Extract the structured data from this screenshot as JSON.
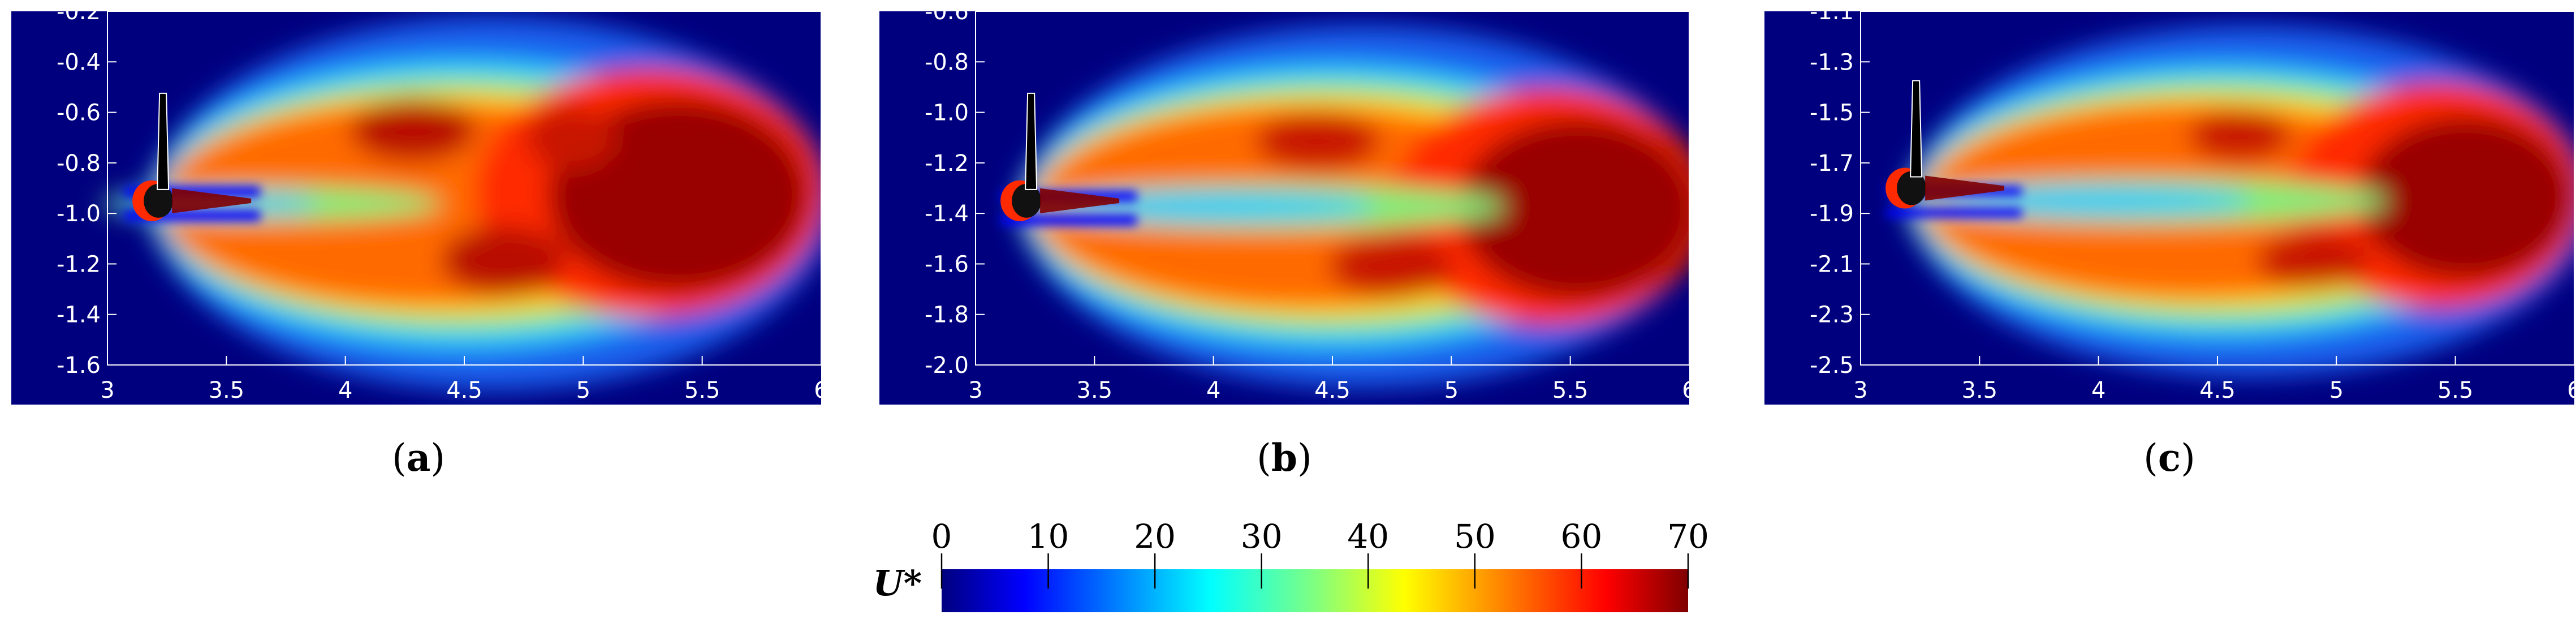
{
  "chart_data": [
    {
      "type": "heatmap",
      "panel_label": "a",
      "x_ticks": [
        "3",
        "3.5",
        "4",
        "4.5",
        "5",
        "5.5",
        "6"
      ],
      "y_ticks": [
        "-0.2",
        "-0.4",
        "-0.6",
        "-0.8",
        "-1.0",
        "-1.2",
        "-1.4",
        "-1.6"
      ],
      "xlim": [
        3,
        6
      ],
      "ylim": [
        -1.6,
        -0.2
      ],
      "rotor_center": [
        3.2,
        -0.95
      ],
      "grid": false
    },
    {
      "type": "heatmap",
      "panel_label": "b",
      "x_ticks": [
        "3",
        "3.5",
        "4",
        "4.5",
        "5",
        "5.5",
        "6"
      ],
      "y_ticks": [
        "-0.6",
        "-0.8",
        "-1.0",
        "-1.2",
        "-1.4",
        "-1.6",
        "-1.8",
        "-2.0"
      ],
      "xlim": [
        3,
        6
      ],
      "ylim": [
        -2.0,
        -0.6
      ],
      "rotor_center": [
        3.2,
        -1.35
      ],
      "grid": false
    },
    {
      "type": "heatmap",
      "panel_label": "c",
      "x_ticks": [
        "3",
        "3.5",
        "4",
        "4.5",
        "5",
        "5.5",
        "6"
      ],
      "y_ticks": [
        "-1.1",
        "-1.3",
        "-1.5",
        "-1.7",
        "-1.9",
        "-2.1",
        "-2.3",
        "-2.5"
      ],
      "xlim": [
        3,
        6
      ],
      "ylim": [
        -2.5,
        -1.1
      ],
      "rotor_center": [
        3.2,
        -1.8
      ],
      "grid": false
    }
  ],
  "colorbar": {
    "label": "U*",
    "ticks": [
      "0",
      "10",
      "20",
      "30",
      "40",
      "50",
      "60",
      "70"
    ],
    "range": [
      0,
      70
    ],
    "colormap": "jet"
  },
  "colors": {
    "low": "#00007f",
    "high": "#7f0000",
    "frame": "#ffffff",
    "caption": "#000000"
  }
}
